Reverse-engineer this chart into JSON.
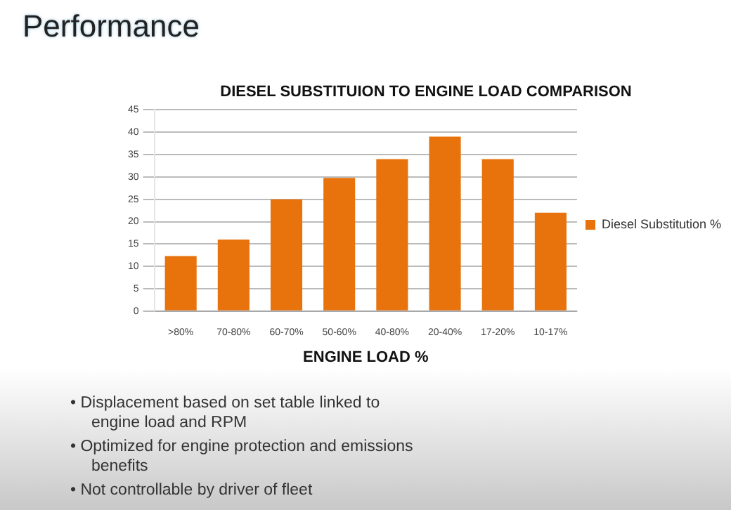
{
  "chart_data": {
    "type": "bar",
    "title": "DIESEL SUBSTITUION TO ENGINE LOAD COMPARISON",
    "xlabel": "ENGINE LOAD %",
    "categories": [
      ">80%",
      "70-80%",
      "60-70%",
      "50-60%",
      "40-80%",
      "20-40%",
      "17-20%",
      "10-17%"
    ],
    "series": [
      {
        "name": "Diesel Substitution %",
        "color": "#e8720c",
        "values": [
          12.3,
          16,
          25,
          29.8,
          34,
          39,
          34,
          22
        ]
      }
    ],
    "ylim": [
      0,
      45
    ],
    "yticks": [
      0,
      5,
      10,
      15,
      20,
      25,
      30,
      35,
      40,
      45
    ],
    "grid": "y",
    "legend": "right",
    "annotations": [
      "Performance",
      "• Displacement based on set table linked to engine load and RPM",
      "• Optimized for engine protection and emissions benefits",
      "• Not controllable by driver of fleet"
    ]
  }
}
